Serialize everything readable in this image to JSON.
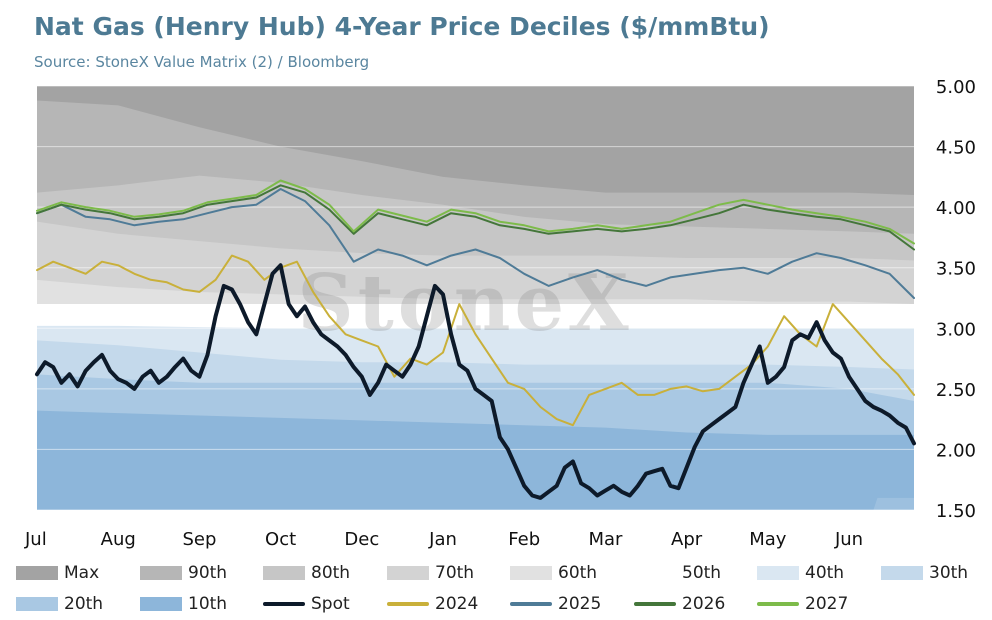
{
  "title": "Nat Gas (Henry Hub) 4-Year Price Deciles ($/mmBtu)",
  "subtitle": "Source: StoneX Value Matrix (2) / Bloomberg",
  "watermark": "StoneX",
  "chart_data": {
    "type": "area",
    "title": "Nat Gas (Henry Hub) 4-Year Price Deciles ($/mmBtu)",
    "xlabel": "",
    "ylabel": "",
    "ylim": [
      1.5,
      5.0
    ],
    "y_ticks": [
      "5.00",
      "4.50",
      "4.00",
      "3.50",
      "3.00",
      "2.50",
      "2.00",
      "1.50"
    ],
    "y_tick_values": [
      5.0,
      4.5,
      4.0,
      3.5,
      3.0,
      2.5,
      2.0,
      1.5
    ],
    "y_axis_side": "right",
    "x_ticks": [
      "Jul",
      "Aug",
      "Sep",
      "Oct",
      "Dec",
      "Jan",
      "Feb",
      "Mar",
      "Apr",
      "May",
      "Jun"
    ],
    "x_tick_values": [
      0,
      1,
      2,
      3,
      4,
      5,
      6,
      7,
      8,
      9,
      10
    ],
    "xlim": [
      0,
      10.8
    ],
    "grid": true,
    "legend_placement": "bottom",
    "bands": [
      {
        "name": "Max",
        "color": "#a3a3a3",
        "x": [
          0,
          1.5,
          2.5,
          3.5,
          4.5,
          5.5,
          6.5,
          7.5,
          8.5,
          9.5,
          10.8
        ],
        "values": [
          5.0,
          5.0,
          5.0,
          5.0,
          5.0,
          5.0,
          5.0,
          5.0,
          5.0,
          5.0,
          5.0
        ]
      },
      {
        "name": "90th",
        "color": "#b6b6b6",
        "x": [
          0,
          1,
          2,
          3,
          4,
          5,
          6,
          7,
          8,
          9,
          10,
          10.8
        ],
        "values": [
          4.88,
          4.84,
          4.66,
          4.5,
          4.38,
          4.25,
          4.18,
          4.12,
          4.12,
          4.12,
          4.12,
          4.1
        ]
      },
      {
        "name": "80th",
        "color": "#c6c6c6",
        "x": [
          0,
          1,
          2,
          3,
          4,
          5,
          6,
          7,
          8,
          9,
          10,
          10.8
        ],
        "values": [
          4.12,
          4.18,
          4.26,
          4.2,
          4.1,
          4.02,
          3.92,
          3.86,
          3.84,
          3.82,
          3.8,
          3.78
        ]
      },
      {
        "name": "70th",
        "color": "#d3d3d3",
        "x": [
          0,
          1,
          2,
          3,
          4,
          5,
          6,
          7,
          8,
          9,
          10,
          10.8
        ],
        "values": [
          3.88,
          3.78,
          3.72,
          3.66,
          3.62,
          3.6,
          3.6,
          3.6,
          3.58,
          3.58,
          3.58,
          3.56
        ]
      },
      {
        "name": "60th",
        "color": "#e1e1e1",
        "x": [
          0,
          1,
          2,
          3,
          4,
          5,
          6,
          7,
          8,
          9,
          10,
          10.8
        ],
        "values": [
          3.4,
          3.34,
          3.3,
          3.28,
          3.26,
          3.24,
          3.24,
          3.24,
          3.24,
          3.22,
          3.22,
          3.2
        ]
      },
      {
        "name": "50th",
        "color": "#ffffff",
        "x": [
          0,
          1,
          2,
          3,
          4,
          5,
          6,
          7,
          8,
          9,
          10,
          10.8
        ],
        "values": [
          3.2,
          3.2,
          3.2,
          3.2,
          3.2,
          3.2,
          3.2,
          3.2,
          3.2,
          3.2,
          3.2,
          3.2
        ]
      },
      {
        "name": "40th",
        "color": "#dae7f2",
        "x": [
          0,
          1,
          2,
          3,
          4,
          5,
          6,
          7,
          8,
          9,
          10,
          10.8
        ],
        "values": [
          3.02,
          3.02,
          3.01,
          3.0,
          3.0,
          3.0,
          3.0,
          3.0,
          3.0,
          3.0,
          3.0,
          3.0
        ]
      },
      {
        "name": "30th",
        "color": "#c4d9eb",
        "x": [
          0,
          1,
          2,
          3,
          4,
          5,
          6,
          7,
          8,
          9,
          10,
          10.8
        ],
        "values": [
          2.9,
          2.86,
          2.8,
          2.74,
          2.72,
          2.72,
          2.7,
          2.7,
          2.7,
          2.7,
          2.68,
          2.66
        ]
      },
      {
        "name": "20th",
        "color": "#a9c8e3",
        "x": [
          0,
          1,
          2,
          3,
          4,
          5,
          6,
          7,
          8,
          9,
          10,
          10.8
        ],
        "values": [
          2.62,
          2.58,
          2.55,
          2.55,
          2.55,
          2.55,
          2.55,
          2.55,
          2.55,
          2.55,
          2.5,
          2.4
        ]
      },
      {
        "name": "10th",
        "color": "#8db6da",
        "x": [
          0,
          1,
          2,
          3,
          4,
          5,
          6,
          7,
          8,
          9,
          10,
          10.8
        ],
        "values": [
          2.32,
          2.3,
          2.28,
          2.26,
          2.24,
          2.22,
          2.2,
          2.18,
          2.14,
          2.12,
          2.12,
          2.12
        ]
      }
    ],
    "min_band": {
      "color": "#9dc0df",
      "x": [
        0,
        10.3,
        10.35,
        10.8
      ],
      "values": [
        1.5,
        1.5,
        1.6,
        1.6
      ]
    },
    "series": [
      {
        "name": "Spot",
        "color": "#0d1a2a",
        "width": 4,
        "x": [
          0,
          0.1,
          0.2,
          0.3,
          0.4,
          0.5,
          0.6,
          0.7,
          0.8,
          0.9,
          1.0,
          1.1,
          1.2,
          1.3,
          1.4,
          1.5,
          1.6,
          1.7,
          1.8,
          1.9,
          2.0,
          2.1,
          2.2,
          2.3,
          2.4,
          2.5,
          2.6,
          2.7,
          2.8,
          2.9,
          3.0,
          3.1,
          3.2,
          3.3,
          3.4,
          3.5,
          3.6,
          3.7,
          3.8,
          3.9,
          4.0,
          4.1,
          4.2,
          4.3,
          4.4,
          4.5,
          4.6,
          4.7,
          4.8,
          4.9,
          5.0,
          5.1,
          5.2,
          5.3,
          5.4,
          5.5,
          5.6,
          5.7,
          5.8,
          5.9,
          6.0,
          6.1,
          6.2,
          6.3,
          6.4,
          6.5,
          6.6,
          6.7,
          6.8,
          6.9,
          7.0,
          7.1,
          7.2,
          7.3,
          7.4,
          7.5,
          7.6,
          7.7,
          7.8,
          7.9,
          8.0,
          8.1,
          8.2,
          8.3,
          8.4,
          8.5,
          8.6,
          8.7,
          8.8,
          8.9,
          9.0,
          9.1,
          9.2,
          9.3,
          9.4,
          9.5,
          9.6,
          9.7,
          9.8,
          9.9,
          10.0,
          10.1,
          10.2,
          10.3,
          10.4,
          10.5,
          10.6,
          10.7,
          10.8
        ],
        "values": [
          2.62,
          2.72,
          2.68,
          2.55,
          2.62,
          2.52,
          2.65,
          2.72,
          2.78,
          2.65,
          2.58,
          2.55,
          2.5,
          2.6,
          2.65,
          2.55,
          2.6,
          2.68,
          2.75,
          2.65,
          2.6,
          2.78,
          3.1,
          3.35,
          3.32,
          3.2,
          3.05,
          2.95,
          3.2,
          3.45,
          3.52,
          3.2,
          3.1,
          3.18,
          3.05,
          2.95,
          2.9,
          2.85,
          2.78,
          2.68,
          2.6,
          2.45,
          2.55,
          2.7,
          2.65,
          2.6,
          2.7,
          2.85,
          3.1,
          3.35,
          3.28,
          2.95,
          2.7,
          2.65,
          2.5,
          2.45,
          2.4,
          2.1,
          2.0,
          1.85,
          1.7,
          1.62,
          1.6,
          1.65,
          1.7,
          1.85,
          1.9,
          1.72,
          1.68,
          1.62,
          1.66,
          1.7,
          1.65,
          1.62,
          1.7,
          1.8,
          1.82,
          1.84,
          1.7,
          1.68,
          1.85,
          2.02,
          2.15,
          2.2,
          2.25,
          2.3,
          2.35,
          2.55,
          2.7,
          2.85,
          2.55,
          2.6,
          2.68,
          2.9,
          2.95,
          2.92,
          3.05,
          2.9,
          2.8,
          2.75,
          2.6,
          2.5,
          2.4,
          2.35,
          2.32,
          2.28,
          2.22,
          2.18,
          2.05
        ]
      },
      {
        "name": "2024",
        "color": "#c9b03a",
        "width": 2,
        "x": [
          0,
          0.2,
          0.4,
          0.6,
          0.8,
          1.0,
          1.2,
          1.4,
          1.6,
          1.8,
          2.0,
          2.2,
          2.4,
          2.6,
          2.8,
          3.0,
          3.2,
          3.4,
          3.6,
          3.8,
          4.0,
          4.2,
          4.4,
          4.6,
          4.8,
          5.0,
          5.2,
          5.4,
          5.6,
          5.8,
          6.0,
          6.2,
          6.4,
          6.6,
          6.8,
          7.0,
          7.2,
          7.4,
          7.6,
          7.8,
          8.0,
          8.2,
          8.4,
          8.6,
          8.8,
          9.0,
          9.2,
          9.4,
          9.6,
          9.8,
          10.0,
          10.2,
          10.4,
          10.6,
          10.8
        ],
        "values": [
          3.48,
          3.55,
          3.5,
          3.45,
          3.55,
          3.52,
          3.45,
          3.4,
          3.38,
          3.32,
          3.3,
          3.4,
          3.6,
          3.55,
          3.4,
          3.5,
          3.55,
          3.3,
          3.1,
          2.95,
          2.9,
          2.85,
          2.6,
          2.75,
          2.7,
          2.8,
          3.2,
          2.95,
          2.75,
          2.55,
          2.5,
          2.35,
          2.25,
          2.2,
          2.45,
          2.5,
          2.55,
          2.45,
          2.45,
          2.5,
          2.52,
          2.48,
          2.5,
          2.6,
          2.7,
          2.85,
          3.1,
          2.95,
          2.85,
          3.2,
          3.05,
          2.9,
          2.75,
          2.62,
          2.45
        ]
      },
      {
        "name": "2025",
        "color": "#4f7b97",
        "width": 2,
        "x": [
          0,
          0.3,
          0.6,
          0.9,
          1.2,
          1.5,
          1.8,
          2.1,
          2.4,
          2.7,
          3.0,
          3.3,
          3.6,
          3.9,
          4.2,
          4.5,
          4.8,
          5.1,
          5.4,
          5.7,
          6.0,
          6.3,
          6.6,
          6.9,
          7.2,
          7.5,
          7.8,
          8.1,
          8.4,
          8.7,
          9.0,
          9.3,
          9.6,
          9.9,
          10.2,
          10.5,
          10.8
        ],
        "values": [
          3.95,
          4.02,
          3.92,
          3.9,
          3.85,
          3.88,
          3.9,
          3.95,
          4.0,
          4.02,
          4.15,
          4.05,
          3.85,
          3.55,
          3.65,
          3.6,
          3.52,
          3.6,
          3.65,
          3.58,
          3.45,
          3.35,
          3.42,
          3.48,
          3.4,
          3.35,
          3.42,
          3.45,
          3.48,
          3.5,
          3.45,
          3.55,
          3.62,
          3.58,
          3.52,
          3.45,
          3.25
        ]
      },
      {
        "name": "2026",
        "color": "#44763a",
        "width": 2,
        "x": [
          0,
          0.3,
          0.6,
          0.9,
          1.2,
          1.5,
          1.8,
          2.1,
          2.4,
          2.7,
          3.0,
          3.3,
          3.6,
          3.9,
          4.2,
          4.5,
          4.8,
          5.1,
          5.4,
          5.7,
          6.0,
          6.3,
          6.6,
          6.9,
          7.2,
          7.5,
          7.8,
          8.1,
          8.4,
          8.7,
          9.0,
          9.3,
          9.6,
          9.9,
          10.2,
          10.5,
          10.8
        ],
        "values": [
          3.95,
          4.02,
          3.98,
          3.95,
          3.9,
          3.92,
          3.95,
          4.02,
          4.05,
          4.08,
          4.18,
          4.12,
          3.98,
          3.78,
          3.95,
          3.9,
          3.85,
          3.95,
          3.92,
          3.85,
          3.82,
          3.78,
          3.8,
          3.82,
          3.8,
          3.82,
          3.85,
          3.9,
          3.95,
          4.02,
          3.98,
          3.95,
          3.92,
          3.9,
          3.85,
          3.8,
          3.65
        ]
      },
      {
        "name": "2027",
        "color": "#7dbb4a",
        "width": 2,
        "x": [
          0,
          0.3,
          0.6,
          0.9,
          1.2,
          1.5,
          1.8,
          2.1,
          2.4,
          2.7,
          3.0,
          3.3,
          3.6,
          3.9,
          4.2,
          4.5,
          4.8,
          5.1,
          5.4,
          5.7,
          6.0,
          6.3,
          6.6,
          6.9,
          7.2,
          7.5,
          7.8,
          8.1,
          8.4,
          8.7,
          9.0,
          9.3,
          9.6,
          9.9,
          10.2,
          10.5,
          10.8
        ],
        "values": [
          3.97,
          4.04,
          4.0,
          3.97,
          3.92,
          3.94,
          3.97,
          4.04,
          4.07,
          4.1,
          4.22,
          4.15,
          4.02,
          3.8,
          3.98,
          3.93,
          3.88,
          3.98,
          3.95,
          3.88,
          3.85,
          3.8,
          3.82,
          3.85,
          3.82,
          3.85,
          3.88,
          3.95,
          4.02,
          4.06,
          4.02,
          3.98,
          3.95,
          3.92,
          3.88,
          3.82,
          3.7
        ]
      }
    ]
  },
  "legend": [
    {
      "label": "Max",
      "kind": "area",
      "color": "#a3a3a3"
    },
    {
      "label": "90th",
      "kind": "area",
      "color": "#b6b6b6"
    },
    {
      "label": "80th",
      "kind": "area",
      "color": "#c6c6c6"
    },
    {
      "label": "70th",
      "kind": "area",
      "color": "#d3d3d3"
    },
    {
      "label": "60th",
      "kind": "area",
      "color": "#e1e1e1"
    },
    {
      "label": "50th",
      "kind": "area",
      "color": "#ffffff"
    },
    {
      "label": "40th",
      "kind": "area",
      "color": "#dae7f2"
    },
    {
      "label": "30th",
      "kind": "area",
      "color": "#c4d9eb"
    },
    {
      "label": "20th",
      "kind": "area",
      "color": "#a9c8e3"
    },
    {
      "label": "10th",
      "kind": "area",
      "color": "#8db6da"
    },
    {
      "label": "Spot",
      "kind": "line",
      "color": "#0d1a2a"
    },
    {
      "label": "2024",
      "kind": "line",
      "color": "#c9b03a"
    },
    {
      "label": "2025",
      "kind": "line",
      "color": "#4f7b97"
    },
    {
      "label": "2026",
      "kind": "line",
      "color": "#44763a"
    },
    {
      "label": "2027",
      "kind": "line",
      "color": "#7dbb4a"
    }
  ]
}
